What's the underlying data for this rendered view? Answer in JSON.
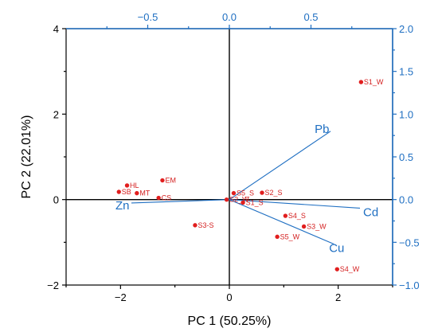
{
  "chart_data": {
    "type": "scatter",
    "subtype": "biplot",
    "xlabel": "PC 1 (50.25%)",
    "ylabel": "PC 2 (22.01%)",
    "xlim": [
      -3,
      3
    ],
    "ylim": [
      -2,
      4
    ],
    "xticks": [
      -2,
      0,
      2
    ],
    "yticks": [
      -2,
      0,
      2,
      4
    ],
    "xtick_labels": [
      "−2",
      "0",
      "2"
    ],
    "ytick_labels": [
      "−2",
      "0",
      "2",
      "4"
    ],
    "top_axis": {
      "lim": [
        -1.0,
        1.0
      ],
      "ticks": [
        -0.5,
        0.0,
        0.5
      ],
      "tick_labels": [
        "−0.5",
        "0.0",
        "0.5"
      ]
    },
    "right_axis": {
      "lim": [
        -1.0,
        2.0
      ],
      "ticks": [
        -1.0,
        -0.5,
        0.0,
        0.5,
        1.0,
        1.5,
        2.0
      ],
      "tick_labels": [
        "−1.0",
        "−0.5",
        "0.0",
        "0.5",
        "1.0",
        "1.5",
        "2.0"
      ]
    },
    "colors": {
      "scores": "#e11e1e",
      "loadings": "#1f6fc2",
      "axes": "#000000"
    },
    "scores": [
      {
        "label": "S1_W",
        "x": 2.42,
        "y": 2.75
      },
      {
        "label": "EM",
        "x": -1.23,
        "y": 0.45
      },
      {
        "label": "HL",
        "x": -1.88,
        "y": 0.33
      },
      {
        "label": "SB",
        "x": -2.03,
        "y": 0.18
      },
      {
        "label": "MT",
        "x": -1.7,
        "y": 0.15
      },
      {
        "label": "CS",
        "x": -1.3,
        "y": 0.04
      },
      {
        "label": "S3-S",
        "x": -0.63,
        "y": -0.6
      },
      {
        "label": "S2_W",
        "x": -0.05,
        "y": 0.0
      },
      {
        "label": "S5_S",
        "x": 0.08,
        "y": 0.15
      },
      {
        "label": "S1_S",
        "x": 0.25,
        "y": -0.07
      },
      {
        "label": "S2_S",
        "x": 0.6,
        "y": 0.16
      },
      {
        "label": "S4_S",
        "x": 1.03,
        "y": -0.38
      },
      {
        "label": "S3_W",
        "x": 1.37,
        "y": -0.63
      },
      {
        "label": "S5_W",
        "x": 0.88,
        "y": -0.87
      },
      {
        "label": "S4_W",
        "x": 1.98,
        "y": -1.63
      }
    ],
    "loadings": [
      {
        "label": "Pb",
        "x": 0.62,
        "y": 0.8
      },
      {
        "label": "Cd",
        "x": 0.8,
        "y": -0.1
      },
      {
        "label": "Cu",
        "x": 0.64,
        "y": -0.52
      },
      {
        "label": "Zn",
        "x": -0.6,
        "y": -0.04
      }
    ]
  }
}
